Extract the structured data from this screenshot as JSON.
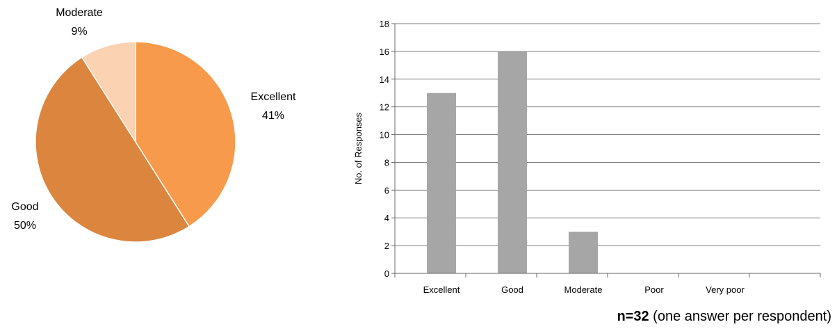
{
  "chart_data": [
    {
      "type": "pie",
      "categories": [
        "Excellent",
        "Good",
        "Moderate"
      ],
      "values": [
        41,
        50,
        9
      ],
      "value_labels": [
        "41%",
        "50%",
        "9%"
      ],
      "colors": [
        "#F79A4B",
        "#DB853F",
        "#FBD2B2"
      ],
      "slice_border_color": "#ffffff",
      "legend": "none"
    },
    {
      "type": "bar",
      "categories": [
        "Excellent",
        "Good",
        "Moderate",
        "Poor",
        "Very poor"
      ],
      "values": [
        13,
        16,
        3,
        0,
        0
      ],
      "ylabel": "No. of Responses",
      "xlabel": "",
      "ylim": [
        0,
        18
      ],
      "yticks": [
        0,
        2,
        4,
        6,
        8,
        10,
        12,
        14,
        16,
        18
      ],
      "ytick_labels": [
        "0",
        "2",
        "4",
        "6",
        "8",
        "10",
        "12",
        "14",
        "16",
        "18"
      ],
      "grid": true,
      "bar_color": "#A6A6A6",
      "axis_color": "#666666",
      "legend": "none"
    }
  ],
  "footnote": {
    "bold": "n=32",
    "text": " (one answer per respondent)"
  }
}
